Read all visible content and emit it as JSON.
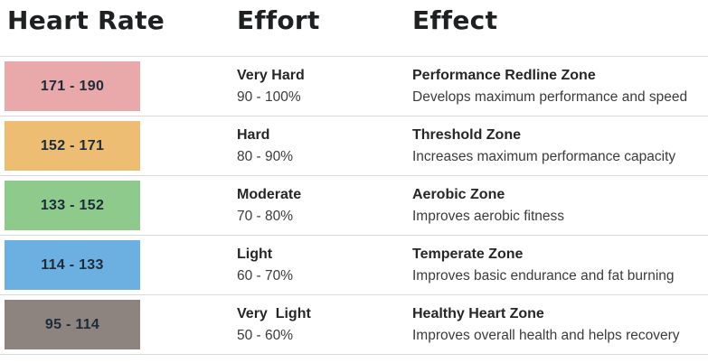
{
  "chart_data": {
    "type": "table",
    "columns": [
      "Heart Rate",
      "Effort",
      "Effect"
    ],
    "rows": [
      {
        "range": "171 - 190",
        "color": "#e9a8aa",
        "effort": "Very Hard",
        "effort_pct": "90 - 100%",
        "zone": "Performance Redline Zone",
        "description": "Develops maximum performance and speed"
      },
      {
        "range": "152 - 171",
        "color": "#ecbd72",
        "effort": "Hard",
        "effort_pct": "80 - 90%",
        "zone": "Threshold Zone",
        "description": "Increases maximum performance capacity"
      },
      {
        "range": "133 - 152",
        "color": "#8dca8b",
        "effort": "Moderate",
        "effort_pct": "70 - 80%",
        "zone": "Aerobic Zone",
        "description": "Improves aerobic fitness"
      },
      {
        "range": "114 - 133",
        "color": "#6bb0e1",
        "effort": "Light",
        "effort_pct": "60 - 70%",
        "zone": "Temperate Zone",
        "description": "Improves basic endurance and fat burning"
      },
      {
        "range": "95 - 114",
        "color": "#8d8480",
        "effort": "Very  Light",
        "effort_pct": "50 - 60%",
        "zone": "Healthy Heart Zone",
        "description": "Improves overall health and helps recovery"
      }
    ]
  }
}
